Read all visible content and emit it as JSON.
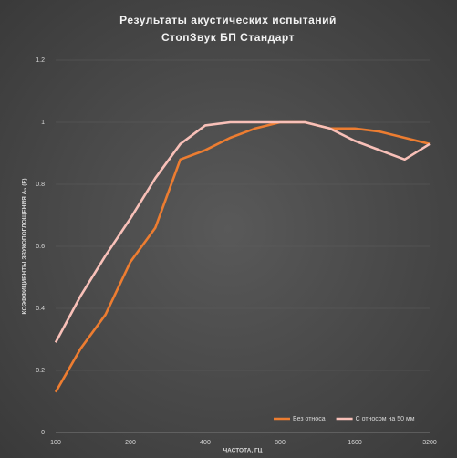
{
  "chart_data": {
    "type": "line",
    "title": [
      "Результаты акустических испытаний",
      "СтопЗвук БП Стандарт"
    ],
    "x_label": "ЧАСТОТА, ГЦ",
    "y_label": "КОЭФФИЦИЕНТЫ ЗВУКОПОГЛОЩЕНИЯ Aₚ (F)",
    "categories": [
      "100",
      null,
      null,
      "200",
      null,
      null,
      "400",
      null,
      null,
      "800",
      null,
      null,
      "1600",
      null,
      null,
      "3200"
    ],
    "series": [
      {
        "name": "Без относа",
        "color": "#ed7d31",
        "values": [
          0.13,
          0.27,
          0.38,
          0.55,
          0.66,
          0.88,
          0.91,
          0.95,
          0.98,
          1.0,
          1.0,
          0.98,
          0.98,
          0.97,
          0.95,
          0.93
        ]
      },
      {
        "name": "С относом на 50 мм",
        "color": "#f8c0b8",
        "values": [
          0.29,
          0.44,
          0.57,
          0.69,
          0.82,
          0.93,
          0.99,
          1.0,
          1.0,
          1.0,
          1.0,
          0.98,
          0.94,
          0.91,
          0.88,
          0.93
        ]
      }
    ],
    "ylim": [
      0,
      1.2
    ],
    "yticks": [
      0,
      0.2,
      0.4,
      0.6,
      0.8,
      1,
      1.2
    ],
    "grid": true,
    "legend": "bottom-right"
  }
}
